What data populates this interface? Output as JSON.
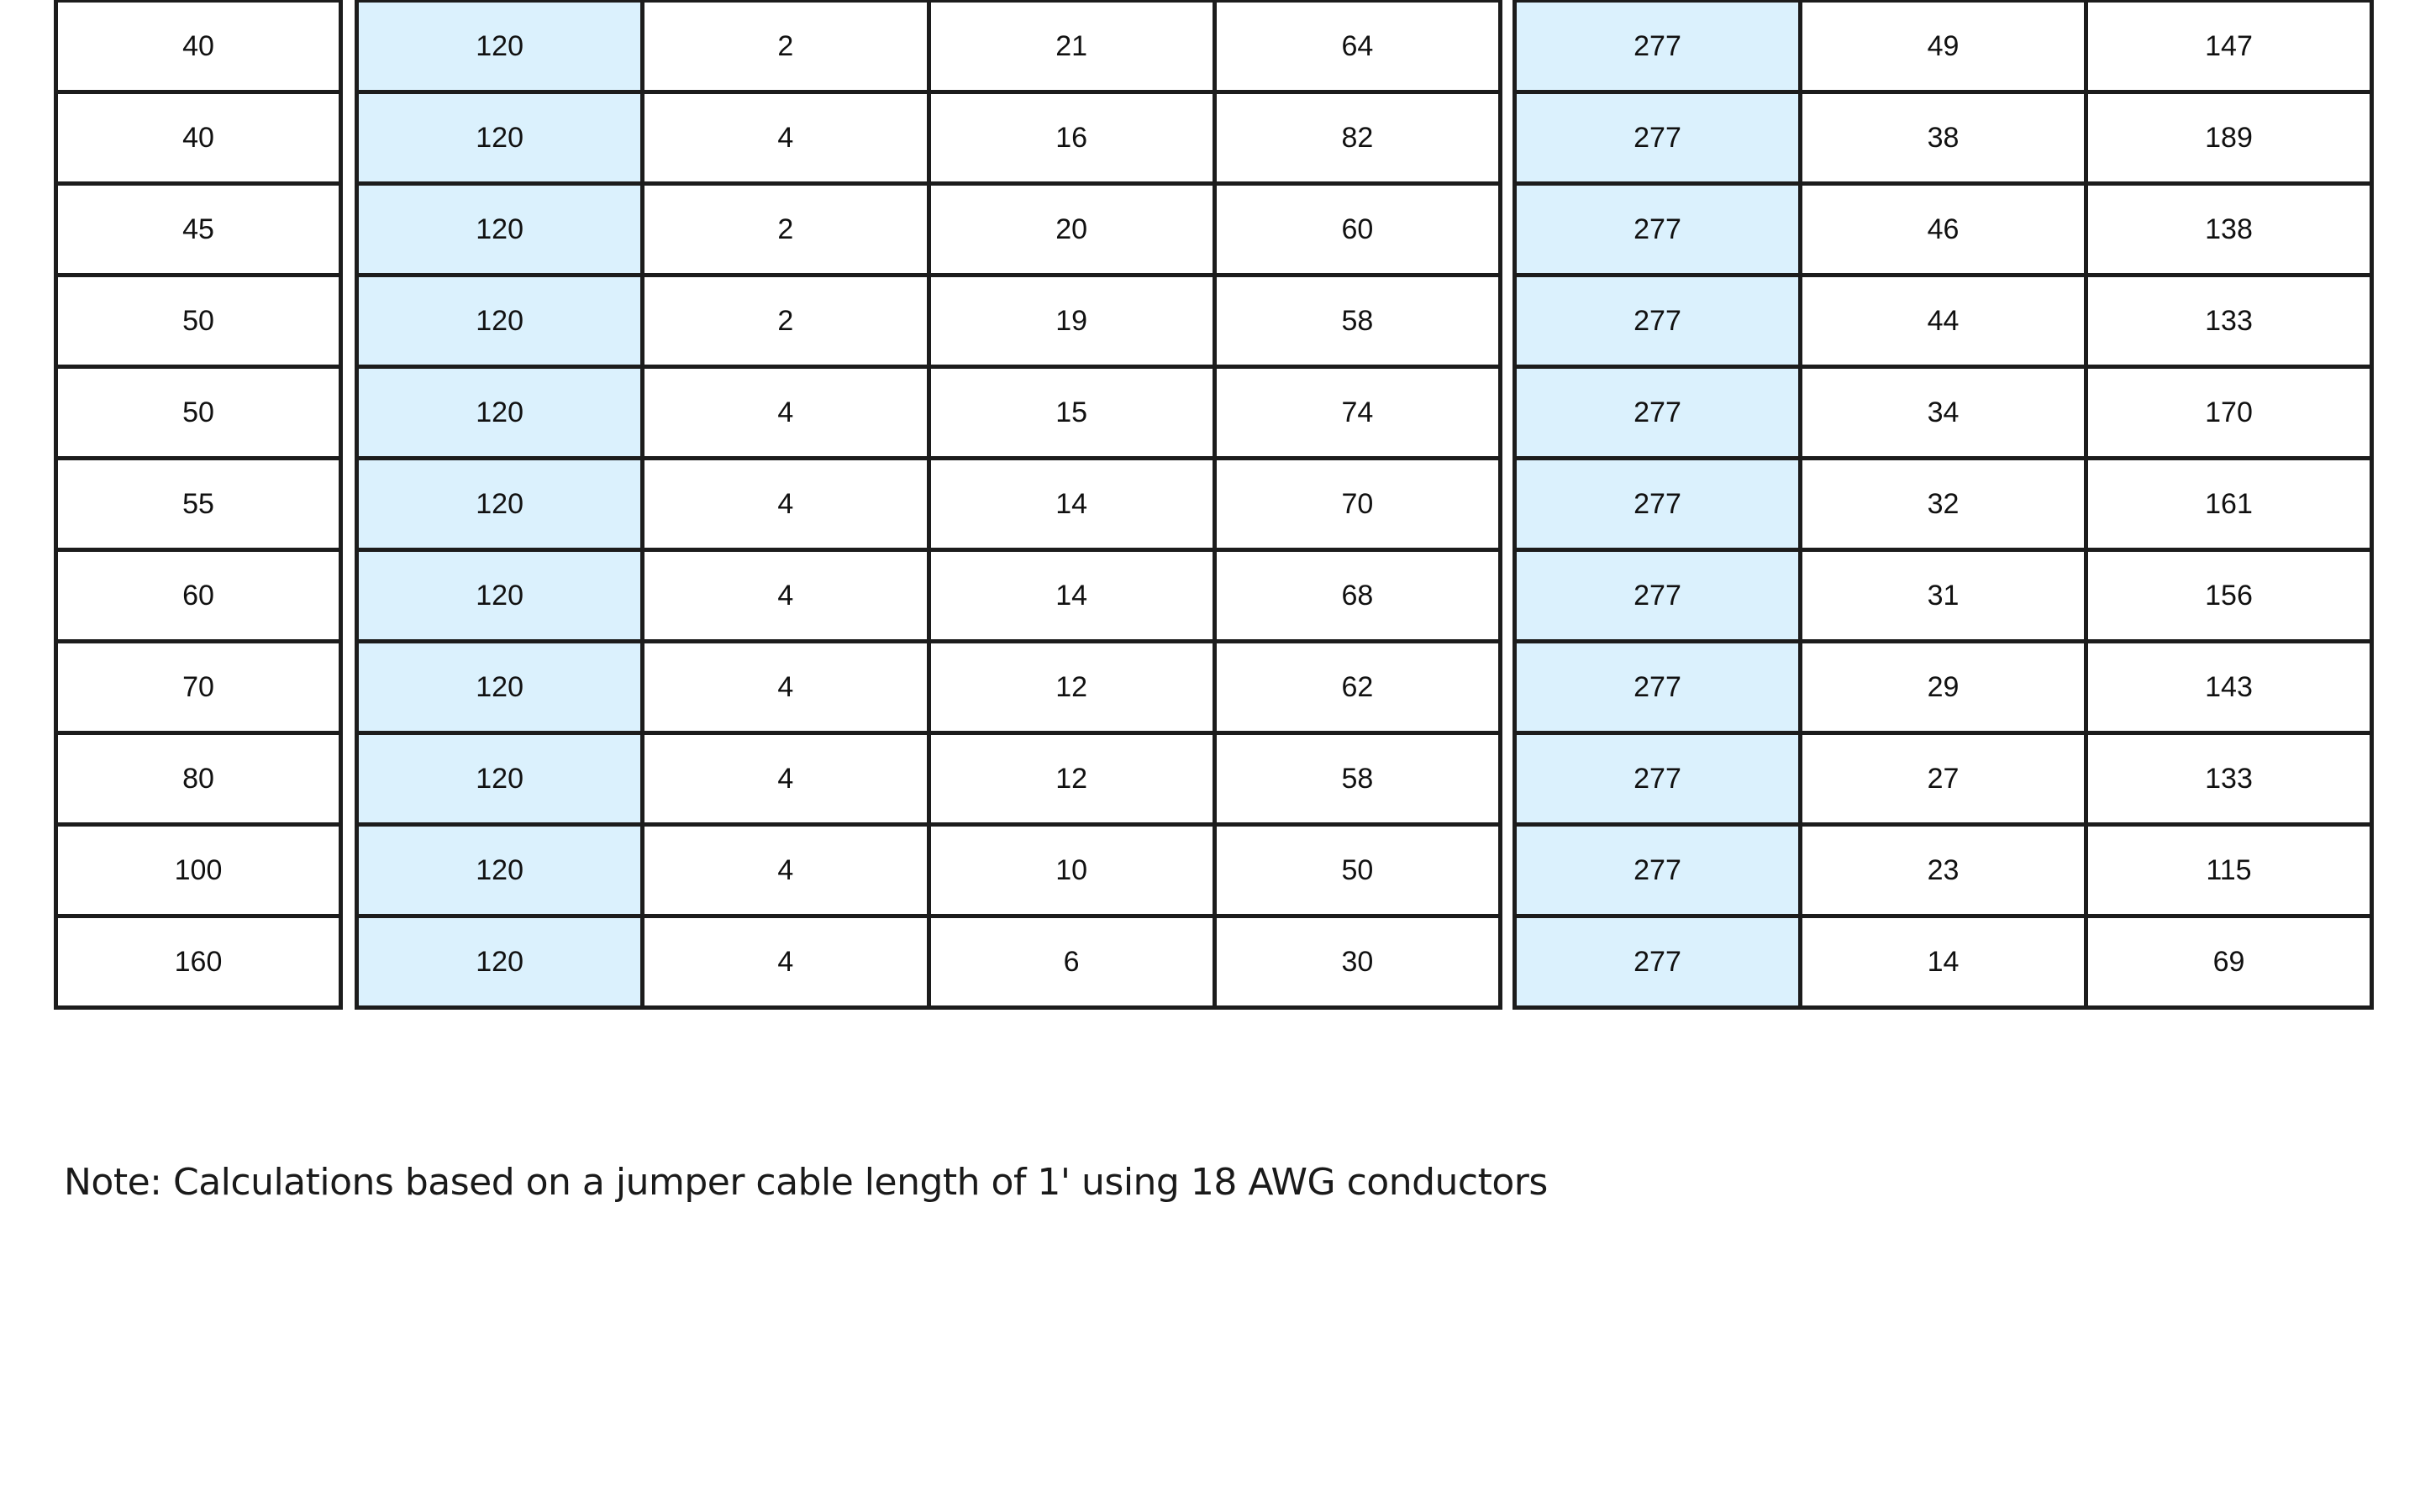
{
  "table": {
    "highlight_color": "#dbf1fd",
    "rows": [
      [
        "40",
        "120",
        "2",
        "21",
        "64",
        "277",
        "49",
        "147"
      ],
      [
        "40",
        "120",
        "4",
        "16",
        "82",
        "277",
        "38",
        "189"
      ],
      [
        "45",
        "120",
        "2",
        "20",
        "60",
        "277",
        "46",
        "138"
      ],
      [
        "50",
        "120",
        "2",
        "19",
        "58",
        "277",
        "44",
        "133"
      ],
      [
        "50",
        "120",
        "4",
        "15",
        "74",
        "277",
        "34",
        "170"
      ],
      [
        "55",
        "120",
        "4",
        "14",
        "70",
        "277",
        "32",
        "161"
      ],
      [
        "60",
        "120",
        "4",
        "14",
        "68",
        "277",
        "31",
        "156"
      ],
      [
        "70",
        "120",
        "4",
        "12",
        "62",
        "277",
        "29",
        "143"
      ],
      [
        "80",
        "120",
        "4",
        "12",
        "58",
        "277",
        "27",
        "133"
      ],
      [
        "100",
        "120",
        "4",
        "10",
        "50",
        "277",
        "23",
        "115"
      ],
      [
        "160",
        "120",
        "4",
        "6",
        "30",
        "277",
        "14",
        "69"
      ]
    ]
  },
  "note": "Note: Calculations based on a jumper cable length of 1' using 18 AWG conductors"
}
